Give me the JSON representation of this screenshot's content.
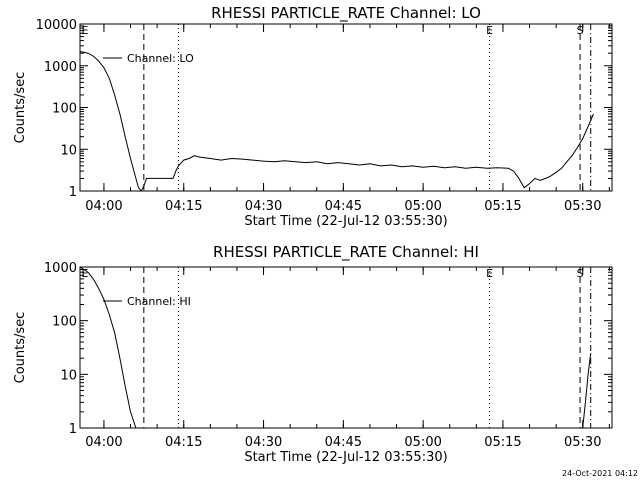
{
  "footer": {
    "timestamp": "24-Oct-2021 04:12"
  },
  "chart_data": [
    {
      "type": "line",
      "title": "RHESSI PARTICLE_RATE Channel: LO",
      "xlabel": "Start Time (22-Jul-12 03:55:30)",
      "ylabel": "Counts/sec",
      "yscale": "log",
      "ylim": [
        1,
        10000
      ],
      "ytick_values": [
        1,
        10,
        100,
        1000,
        10000
      ],
      "ytick_labels": [
        "1",
        "10",
        "100",
        "1000",
        "10000"
      ],
      "xlim": [
        "03:55:30",
        "05:35:30"
      ],
      "xtick_values": [
        "04:00",
        "04:15",
        "04:30",
        "04:45",
        "05:00",
        "05:15",
        "05:30"
      ],
      "xtick_labels": [
        "04:00",
        "04:15",
        "04:30",
        "04:45",
        "05:00",
        "05:15",
        "05:30"
      ],
      "legend_label": "Channel: LO",
      "markers": [
        {
          "label": "E",
          "time": "03:55:30",
          "style": "none"
        },
        {
          "label": "",
          "time": "04:07:30",
          "style": "dashed"
        },
        {
          "label": "",
          "time": "04:14:00",
          "style": "dotted"
        },
        {
          "label": "E",
          "time": "05:12:30",
          "style": "dotted"
        },
        {
          "label": "S",
          "time": "05:29:30",
          "style": "dashed"
        },
        {
          "label": "",
          "time": "05:31:30",
          "style": "dashdot"
        }
      ],
      "series": [
        {
          "x": [
            "03:55:30",
            "03:57:00",
            "03:58:00",
            "03:59:00",
            "04:00:00",
            "04:01:00",
            "04:02:00",
            "04:03:00",
            "04:04:00",
            "04:05:00",
            "04:06:00",
            "04:06:30",
            "04:07:00",
            "04:07:30",
            "04:08:00",
            "04:13:00",
            "04:13:30",
            "04:14:00",
            "04:15:00",
            "04:16:00",
            "04:17:00",
            "04:18:00",
            "04:20:00",
            "04:22:00",
            "04:24:00",
            "04:26:00",
            "04:28:00",
            "04:30:00",
            "04:32:00",
            "04:34:00",
            "04:36:00",
            "04:38:00",
            "04:40:00",
            "04:42:00",
            "04:44:00",
            "04:46:00",
            "04:48:00",
            "04:50:00",
            "04:52:00",
            "04:54:00",
            "04:56:00",
            "04:58:00",
            "05:00:00",
            "05:02:00",
            "05:04:00",
            "05:06:00",
            "05:08:00",
            "05:10:00",
            "05:12:00",
            "05:14:00",
            "05:16:00",
            "05:17:00",
            "05:18:00",
            "05:19:00",
            "05:20:00",
            "05:21:00",
            "05:22:00",
            "05:23:00",
            "05:24:00",
            "05:25:00",
            "05:26:00",
            "05:27:00",
            "05:28:00",
            "05:29:00",
            "05:30:00",
            "05:31:00",
            "05:32:00"
          ],
          "y": [
            2200,
            2000,
            1700,
            1300,
            900,
            500,
            200,
            70,
            20,
            6,
            2,
            1.2,
            1,
            1.3,
            2,
            2,
            3,
            4,
            5.5,
            6,
            7,
            6.5,
            6,
            5.5,
            6,
            5.8,
            5.5,
            5.2,
            5,
            5.3,
            5,
            4.8,
            5,
            4.5,
            4.8,
            4.5,
            4.2,
            4.5,
            4,
            4.2,
            3.8,
            4,
            3.7,
            3.9,
            3.6,
            3.8,
            3.5,
            3.7,
            3.5,
            3.6,
            3.5,
            3,
            2,
            1.2,
            1.5,
            2,
            1.8,
            2,
            2.3,
            2.8,
            3.5,
            5,
            7,
            11,
            18,
            35,
            70
          ]
        }
      ]
    },
    {
      "type": "line",
      "title": "RHESSI PARTICLE_RATE Channel: HI",
      "xlabel": "Start Time (22-Jul-12 03:55:30)",
      "ylabel": "Counts/sec",
      "yscale": "log",
      "ylim": [
        1,
        1000
      ],
      "ytick_values": [
        1,
        10,
        100,
        1000
      ],
      "ytick_labels": [
        "1",
        "10",
        "100",
        "1000"
      ],
      "xlim": [
        "03:55:30",
        "05:35:30"
      ],
      "xtick_values": [
        "04:00",
        "04:15",
        "04:30",
        "04:45",
        "05:00",
        "05:15",
        "05:30"
      ],
      "xtick_labels": [
        "04:00",
        "04:15",
        "04:30",
        "04:45",
        "05:00",
        "05:15",
        "05:30"
      ],
      "legend_label": "Channel: HI",
      "markers": [
        {
          "label": "E",
          "time": "03:55:30",
          "style": "none"
        },
        {
          "label": "",
          "time": "04:07:30",
          "style": "dashed"
        },
        {
          "label": "",
          "time": "04:14:00",
          "style": "dotted"
        },
        {
          "label": "E",
          "time": "05:12:30",
          "style": "dotted"
        },
        {
          "label": "S",
          "time": "05:29:30",
          "style": "dashed"
        },
        {
          "label": "",
          "time": "05:31:30",
          "style": "dashdot"
        }
      ],
      "series": [
        {
          "x": [
            "03:55:30",
            "03:57:00",
            "03:58:00",
            "03:59:00",
            "04:00:00",
            "04:01:00",
            "04:02:00",
            "04:03:00",
            "04:04:00",
            "04:05:00",
            "04:06:00"
          ],
          "y": [
            1000,
            800,
            600,
            400,
            250,
            130,
            60,
            20,
            6,
            2,
            1
          ]
        },
        {
          "x": [
            "05:30:00",
            "05:30:30",
            "05:31:00",
            "05:31:30"
          ],
          "y": [
            1,
            3,
            10,
            25
          ]
        }
      ]
    }
  ]
}
